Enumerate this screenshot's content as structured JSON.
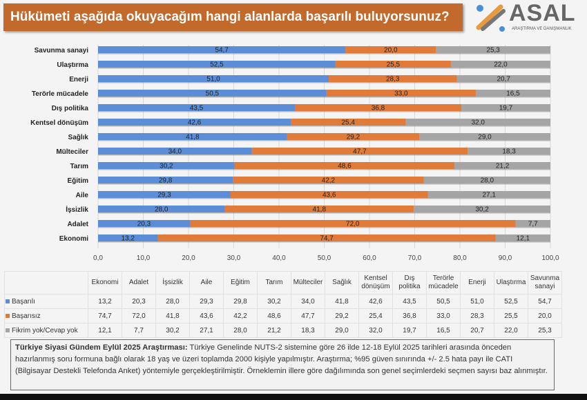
{
  "title": "Hükümeti aşağıda okuyacağım hangi alanlarda başarılı buluyorsunuz?",
  "logo": {
    "name": "ASAL",
    "sub": "ARAŞTIRMA VE DANIŞMANLIK"
  },
  "chart_data": {
    "type": "bar",
    "stacked": true,
    "orientation": "horizontal",
    "categories": [
      "Savunma sanayi",
      "Ulaştırma",
      "Enerji",
      "Terörle mücadele",
      "Dış politika",
      "Kentsel dönüşüm",
      "Sağlık",
      "Mülteciler",
      "Tarım",
      "Eğitim",
      "Aile",
      "İşsizlik",
      "Adalet",
      "Ekonomi"
    ],
    "series": [
      {
        "name": "Başarılı",
        "color": "#5b8ed6",
        "values": [
          54.7,
          52.5,
          51.0,
          50.5,
          43.5,
          42.6,
          41.8,
          34.0,
          30.2,
          29.8,
          29.3,
          28.0,
          20.3,
          13.2
        ]
      },
      {
        "name": "Başarısız",
        "color": "#e07b39",
        "values": [
          20.0,
          25.5,
          28.3,
          33.0,
          36.8,
          25.4,
          29.2,
          47.7,
          48.6,
          42.2,
          43.6,
          41.8,
          72.0,
          74.7
        ]
      },
      {
        "name": "Fikrim yok/Cevap yok",
        "color": "#a5a5a5",
        "values": [
          25.3,
          22.0,
          20.7,
          16.5,
          19.7,
          32.0,
          29.0,
          18.3,
          21.2,
          28.0,
          27.1,
          30.2,
          7.7,
          12.1
        ]
      }
    ],
    "xlim": [
      0,
      100
    ],
    "xticks": [
      "0,0",
      "10,0",
      "20,0",
      "30,0",
      "40,0",
      "50,0",
      "60,0",
      "70,0",
      "80,0",
      "90,0",
      "100,0"
    ],
    "grid": true
  },
  "table": {
    "columns": [
      "Ekonomi",
      "Adalet",
      "İşsizlik",
      "Aile",
      "Eğitim",
      "Tarım",
      "Mülteciler",
      "Sağlık",
      "Kentsel dönüşüm",
      "Dış politika",
      "Terörle mücadele",
      "Enerji",
      "Ulaştırma",
      "Savunma sanayi"
    ],
    "rows": [
      {
        "label": "Başarılı",
        "color": "#5b8ed6",
        "values": [
          "13,2",
          "20,3",
          "28,0",
          "29,3",
          "29,8",
          "30,2",
          "34,0",
          "41,8",
          "42,6",
          "43,5",
          "50,5",
          "51,0",
          "52,5",
          "54,7"
        ]
      },
      {
        "label": "Başarısız",
        "color": "#e07b39",
        "values": [
          "74,7",
          "72,0",
          "41,8",
          "43,6",
          "42,2",
          "48,6",
          "47,7",
          "29,2",
          "25,4",
          "36,8",
          "33,0",
          "28,3",
          "25,5",
          "20,0"
        ]
      },
      {
        "label": "Fikrim yok/Cevap yok",
        "color": "#a5a5a5",
        "values": [
          "12,1",
          "7,7",
          "30,2",
          "27,1",
          "28,0",
          "21,2",
          "18,3",
          "29,0",
          "32,0",
          "19,7",
          "16,5",
          "20,7",
          "22,0",
          "25,3"
        ]
      }
    ]
  },
  "footer": {
    "bold": "Türkiye Siyasi Gündem Eylül 2025 Araştırması:",
    "text": " Türkiye Genelinde NUTS-2 sistemine göre 26 ilde 12-18 Eylül 2025 tarihleri arasında önceden hazırlanmış soru formuna bağlı olarak 18 yaş ve üzeri toplamda 2000 kişiyle yapılmıştır. Araştırma; %95 güven sınırında +/- 2.5 hata payı ile CATI (Bilgisayar Destekli Telefonda Anket) yöntemiyle gerçekleştirilmiştir. Örneklemin illere göre dağılımında son genel seçimlerdeki seçmen sayısı baz alınmıştır."
  }
}
